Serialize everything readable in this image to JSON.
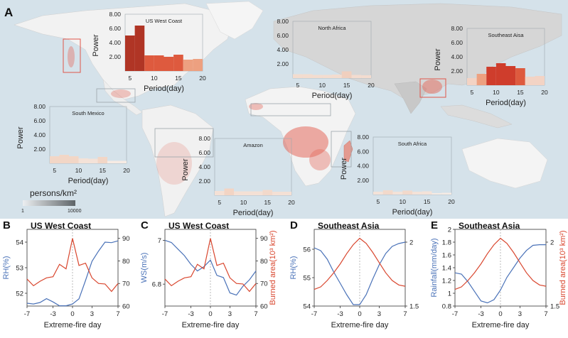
{
  "panel_a": {
    "label": "A",
    "colorbar": {
      "title": "persons/km²",
      "min_label": "1",
      "max_label": "10000"
    }
  },
  "chart_data": [
    {
      "type": "bar",
      "panel": "A",
      "title": "US West Coast",
      "xlabel": "Period(day)",
      "ylabel": "Power",
      "xlim": [
        4,
        20
      ],
      "ylim": [
        0,
        8
      ],
      "xticks": [
        "5",
        "10",
        "15",
        "20"
      ],
      "yticks": [
        "2.00",
        "4.00",
        "6.00",
        "8.00"
      ],
      "bins": [
        [
          4,
          6
        ],
        [
          6,
          8
        ],
        [
          8,
          10
        ],
        [
          10,
          12
        ],
        [
          12,
          14
        ],
        [
          14,
          16
        ],
        [
          16,
          18
        ],
        [
          18,
          20
        ]
      ],
      "values": [
        5.0,
        6.4,
        2.2,
        2.2,
        2.0,
        2.3,
        1.6,
        1.7
      ],
      "colors": [
        "#b03525",
        "#b03525",
        "#de5a3e",
        "#de5a3e",
        "#de5a3e",
        "#de5a3e",
        "#eda080",
        "#eda080"
      ]
    },
    {
      "type": "bar",
      "panel": "A",
      "title": "North Africa",
      "xlabel": "Period(day)",
      "ylabel": "",
      "xlim": [
        4,
        20
      ],
      "ylim": [
        0,
        8
      ],
      "xticks": [
        "5",
        "10",
        "15",
        "20"
      ],
      "yticks": [
        "2.00",
        "4.00",
        "6.00",
        "8.00"
      ],
      "bins": [
        [
          4,
          6
        ],
        [
          6,
          8
        ],
        [
          8,
          10
        ],
        [
          10,
          12
        ],
        [
          12,
          14
        ],
        [
          14,
          16
        ],
        [
          16,
          18
        ],
        [
          18,
          20
        ]
      ],
      "values": [
        0.55,
        0.55,
        0.45,
        0.45,
        0.5,
        0.95,
        0.45,
        0.4
      ],
      "colors": [
        "#f3dccf",
        "#f3dccf",
        "#f3dccf",
        "#f3dccf",
        "#f3dccf",
        "#f0cfbe",
        "#f3dccf",
        "#f3dccf"
      ]
    },
    {
      "type": "bar",
      "panel": "A",
      "title": "Southeast Aisa",
      "xlabel": "Period(day)",
      "ylabel": "Power",
      "xlim": [
        4,
        20
      ],
      "ylim": [
        0,
        8
      ],
      "xticks": [
        "5",
        "10",
        "15",
        "20"
      ],
      "yticks": [
        "2.00",
        "4.00",
        "6.00",
        "8.00"
      ],
      "bins": [
        [
          4,
          6
        ],
        [
          6,
          8
        ],
        [
          8,
          10
        ],
        [
          10,
          12
        ],
        [
          12,
          14
        ],
        [
          14,
          16
        ],
        [
          16,
          18
        ],
        [
          18,
          20
        ]
      ],
      "values": [
        1.0,
        1.6,
        2.6,
        3.1,
        2.7,
        2.4,
        1.2,
        1.3
      ],
      "colors": [
        "#f3d3c4",
        "#eda080",
        "#cf3d2c",
        "#cf3d2c",
        "#cf3d2c",
        "#de5a3e",
        "#f3d3c4",
        "#f3d3c4"
      ]
    },
    {
      "type": "bar",
      "panel": "A",
      "title": "South Mexico",
      "xlabel": "Period(day)",
      "ylabel": "Power",
      "xlim": [
        4,
        20
      ],
      "ylim": [
        0,
        8
      ],
      "xticks": [
        "5",
        "10",
        "15",
        "20"
      ],
      "yticks": [
        "2.00",
        "4.00",
        "6.00",
        "8.00"
      ],
      "bins": [
        [
          4,
          6
        ],
        [
          6,
          8
        ],
        [
          8,
          10
        ],
        [
          10,
          12
        ],
        [
          12,
          14
        ],
        [
          14,
          16
        ],
        [
          16,
          18
        ],
        [
          18,
          20
        ]
      ],
      "values": [
        1.0,
        1.2,
        1.0,
        0.7,
        0.65,
        0.9,
        0.35,
        0.35
      ],
      "colors": [
        "#f2d6c6",
        "#f2d6c6",
        "#f2d6c6",
        "#f4e2d8",
        "#f4e2d8",
        "#f2d6c6",
        "#f6ebe4",
        "#f6ebe4"
      ]
    },
    {
      "type": "bar",
      "panel": "A",
      "title": "Amazon",
      "xlabel": "Period(day)",
      "ylabel": "Power",
      "xlim": [
        4,
        20
      ],
      "ylim": [
        0,
        8
      ],
      "xticks": [
        "5",
        "10",
        "15",
        "20"
      ],
      "yticks": [
        "2.00",
        "4.00",
        "6.00",
        "8.00"
      ],
      "bins": [
        [
          4,
          6
        ],
        [
          6,
          8
        ],
        [
          8,
          10
        ],
        [
          10,
          12
        ],
        [
          12,
          14
        ],
        [
          14,
          16
        ],
        [
          16,
          18
        ],
        [
          18,
          20
        ]
      ],
      "values": [
        0.6,
        0.95,
        0.55,
        0.55,
        0.55,
        0.75,
        0.5,
        0.5
      ],
      "colors": [
        "#f4e0d5",
        "#f2d4c4",
        "#f4e0d5",
        "#f4e0d5",
        "#f4e0d5",
        "#f2d9cb",
        "#f4e0d5",
        "#f4e0d5"
      ]
    },
    {
      "type": "bar",
      "panel": "A",
      "title": "South Africa",
      "xlabel": "Period(day)",
      "ylabel": "Power",
      "xlim": [
        4,
        20
      ],
      "ylim": [
        0,
        8
      ],
      "xticks": [
        "5",
        "10",
        "15",
        "20"
      ],
      "yticks": [
        "2.00",
        "4.00",
        "6.00",
        "8.00"
      ],
      "bins": [
        [
          4,
          6
        ],
        [
          6,
          8
        ],
        [
          8,
          10
        ],
        [
          10,
          12
        ],
        [
          12,
          14
        ],
        [
          14,
          16
        ],
        [
          16,
          18
        ],
        [
          18,
          20
        ]
      ],
      "values": [
        0.4,
        0.6,
        0.4,
        0.55,
        0.4,
        0.45,
        0.2,
        0.25
      ],
      "colors": [
        "#f4e2d8",
        "#f2d9cb",
        "#f4e2d8",
        "#f2d9cb",
        "#f4e2d8",
        "#f4e2d8",
        "#f6ebe4",
        "#f6ebe4"
      ]
    },
    {
      "type": "line",
      "panel": "B",
      "panel_label": "B",
      "title": "US West Coast",
      "xlabel": "Extreme-fire day",
      "x": [
        -7,
        -6,
        -5,
        -4,
        -3,
        -2,
        -1,
        0,
        1,
        2,
        3,
        4,
        5,
        6,
        7
      ],
      "xticks": [
        "-7",
        "-3",
        "0",
        "3",
        "7"
      ],
      "left_axis": {
        "label": "RH(%)",
        "ylim": [
          51.5,
          54.5
        ],
        "ticks": [
          "52",
          "53",
          "54"
        ],
        "color": "#4a72b8"
      },
      "right_axis": {
        "label": "",
        "ylim": [
          60,
          94
        ],
        "ticks": [
          "60",
          "70",
          "80",
          "90"
        ],
        "color": "#333333"
      },
      "series": [
        {
          "name": "RH(%)",
          "axis": "left",
          "color": "#4a72b8",
          "values": [
            51.61,
            51.58,
            51.64,
            51.79,
            51.66,
            51.51,
            51.51,
            51.58,
            51.78,
            52.5,
            53.25,
            53.65,
            54.0,
            53.98,
            54.05
          ]
        },
        {
          "name": "Burned area",
          "axis": "right",
          "color": "#d9472f",
          "values": [
            72,
            69,
            71,
            72.5,
            73,
            78.5,
            76.5,
            90,
            78,
            79,
            72.5,
            70,
            69.8,
            66.5,
            70
          ]
        }
      ]
    },
    {
      "type": "line",
      "panel": "C",
      "panel_label": "C",
      "title": "US West Coast",
      "xlabel": "Extreme-fire day",
      "x": [
        -7,
        -6,
        -5,
        -4,
        -3,
        -2,
        -1,
        0,
        1,
        2,
        3,
        4,
        5,
        6,
        7
      ],
      "xticks": [
        "-7",
        "-3",
        "0",
        "3",
        "7"
      ],
      "left_axis": {
        "label": "WS(m/s)",
        "ylim": [
          6.7,
          7.05
        ],
        "ticks": [
          "6.8",
          "7"
        ],
        "color": "#4a72b8"
      },
      "right_axis": {
        "label": "Burned area(10³ km²)",
        "ylim": [
          60,
          94
        ],
        "ticks": [
          "60",
          "70",
          "80",
          "90"
        ],
        "color": "#d9472f"
      },
      "series": [
        {
          "name": "WS(m/s)",
          "axis": "left",
          "color": "#4a72b8",
          "values": [
            7.0,
            6.99,
            6.96,
            6.93,
            6.89,
            6.86,
            6.88,
            6.91,
            6.84,
            6.83,
            6.76,
            6.75,
            6.79,
            6.82,
            6.86
          ]
        },
        {
          "name": "Burned area",
          "axis": "right",
          "color": "#d9472f",
          "values": [
            72,
            69,
            71,
            72.5,
            73,
            78.5,
            76.5,
            90,
            78,
            79,
            72.5,
            70,
            69.8,
            66.5,
            70
          ]
        }
      ]
    },
    {
      "type": "line",
      "panel": "D",
      "panel_label": "D",
      "title": "Southeast Asia",
      "xlabel": "Extreme-fire day",
      "x": [
        -7,
        -6,
        -5,
        -4,
        -3,
        -2,
        -1,
        0,
        1,
        2,
        3,
        4,
        5,
        6,
        7
      ],
      "xticks": [
        "-7",
        "-3",
        "0",
        "3",
        "7"
      ],
      "left_axis": {
        "label": "RH(%)",
        "ylim": [
          54,
          56.7
        ],
        "ticks": [
          "54",
          "55",
          "56"
        ],
        "color": "#4a72b8"
      },
      "right_axis": {
        "label": "",
        "ylim": [
          1.5,
          2.1
        ],
        "ticks": [
          "1.5",
          "2"
        ],
        "color": "#333333"
      },
      "series": [
        {
          "name": "RH(%)",
          "axis": "left",
          "color": "#4a72b8",
          "values": [
            56.05,
            55.95,
            55.65,
            55.2,
            54.8,
            54.4,
            54.05,
            54.05,
            54.4,
            54.95,
            55.45,
            55.85,
            56.1,
            56.2,
            56.25
          ]
        },
        {
          "name": "Burned area",
          "axis": "right",
          "color": "#d9472f",
          "values": [
            1.63,
            1.65,
            1.7,
            1.76,
            1.83,
            1.91,
            1.98,
            2.03,
            1.99,
            1.92,
            1.84,
            1.76,
            1.7,
            1.665,
            1.655
          ]
        }
      ]
    },
    {
      "type": "line",
      "panel": "E",
      "panel_label": "E",
      "title": "Southeast Asia",
      "xlabel": "Extreme-fire day",
      "x": [
        -7,
        -6,
        -5,
        -4,
        -3,
        -2,
        -1,
        0,
        1,
        2,
        3,
        4,
        5,
        6,
        7
      ],
      "xticks": [
        "-7",
        "-3",
        "0",
        "3",
        "7"
      ],
      "left_axis": {
        "label": "Rainfall(mm/day)",
        "ylim": [
          0.8,
          2.0
        ],
        "ticks": [
          "0.8",
          "1",
          "1.2",
          "1.4",
          "1.6",
          "1.8",
          "2"
        ],
        "color": "#4a72b8"
      },
      "right_axis": {
        "label": "Burned area(10³ km²)",
        "ylim": [
          1.5,
          2.1
        ],
        "ticks": [
          "1.5",
          "2"
        ],
        "color": "#d9472f"
      },
      "series": [
        {
          "name": "Rainfall(mm/day)",
          "axis": "left",
          "color": "#4a72b8",
          "values": [
            1.32,
            1.3,
            1.18,
            1.03,
            0.88,
            0.85,
            0.9,
            1.05,
            1.25,
            1.4,
            1.55,
            1.67,
            1.75,
            1.76,
            1.76
          ]
        },
        {
          "name": "Burned area",
          "axis": "right",
          "color": "#d9472f",
          "values": [
            1.63,
            1.65,
            1.7,
            1.76,
            1.83,
            1.91,
            1.98,
            2.03,
            1.99,
            1.92,
            1.84,
            1.76,
            1.7,
            1.665,
            1.655
          ]
        }
      ]
    }
  ]
}
